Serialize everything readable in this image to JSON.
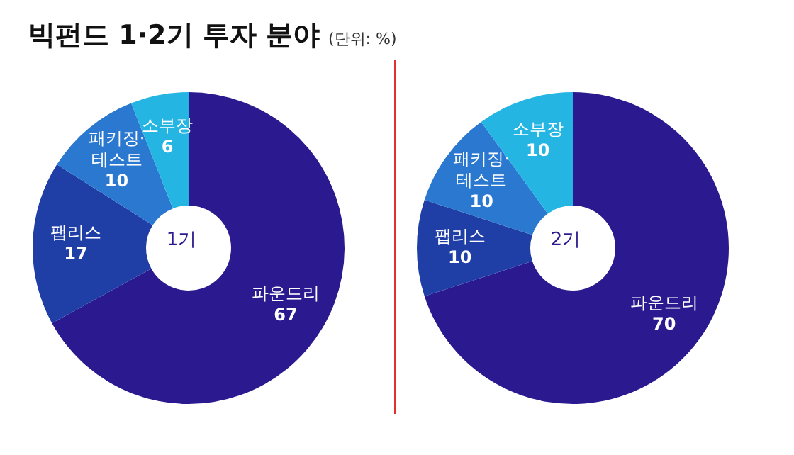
{
  "chart_data": [
    {
      "type": "donut",
      "title": "빅펀드 1·2기 투자 분야",
      "subtitle": "(단위: %)",
      "categories": [
        "파운드리",
        "팹리스",
        "패키징·테스트",
        "소부장"
      ],
      "values": [
        67,
        17,
        10,
        6
      ],
      "colors": [
        "#2b1a8f",
        "#1f3fa6",
        "#2a78cf",
        "#25b5e3"
      ],
      "data_labels": true,
      "legend": false,
      "annotations": [
        "1기"
      ]
    },
    {
      "type": "donut",
      "categories": [
        "파운드리",
        "팹리스",
        "패키징·테스트",
        "소부장"
      ],
      "values": [
        70,
        10,
        10,
        10
      ],
      "colors": [
        "#2b1a8f",
        "#1f3fa6",
        "#2a78cf",
        "#25b5e3"
      ],
      "data_labels": true,
      "legend": false,
      "annotations": [
        "2기"
      ]
    }
  ]
}
